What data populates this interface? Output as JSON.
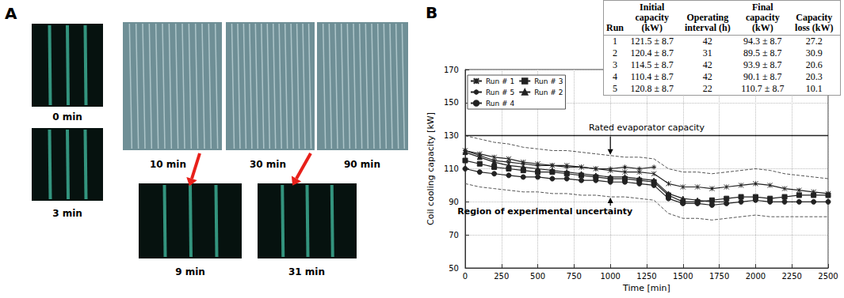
{
  "panel_a": {
    "label": "A",
    "images": [
      {
        "caption": "0 min"
      },
      {
        "caption": "3 min"
      },
      {
        "caption": "10 min"
      },
      {
        "caption": "30 min"
      },
      {
        "caption": "90 min"
      },
      {
        "caption": "9 min"
      },
      {
        "caption": "31 min"
      }
    ]
  },
  "chart_data": {
    "panel_label": "B",
    "type": "line",
    "xlabel": "Time [min]",
    "ylabel": "Coil cooling capacity [kW]",
    "x": [
      0,
      100,
      200,
      300,
      400,
      500,
      600,
      700,
      800,
      900,
      1000,
      1100,
      1200,
      1300,
      1400,
      1500,
      1600,
      1700,
      1800,
      1900,
      2000,
      2100,
      2200,
      2300,
      2400,
      2500
    ],
    "xlim": [
      0,
      2500
    ],
    "xticks": [
      0,
      250,
      500,
      750,
      1000,
      1250,
      1500,
      1750,
      2000,
      2250,
      2500
    ],
    "ylim": [
      50,
      170
    ],
    "yticks": [
      50,
      70,
      90,
      110,
      130,
      150,
      170
    ],
    "grid": true,
    "legend": "upper left",
    "series": [
      {
        "name": "Run # 1",
        "color": "#222222",
        "marker": "x",
        "line_style": "solid",
        "values": [
          121,
          119,
          117,
          116,
          114,
          113,
          112,
          112,
          111,
          110,
          109,
          108,
          108,
          107,
          101,
          99,
          99,
          98,
          99,
          100,
          101,
          100,
          98,
          97,
          96,
          95
        ]
      },
      {
        "name": "Run # 3",
        "color": "#222222",
        "marker": "square",
        "line_style": "solid",
        "values": [
          115,
          113,
          111,
          110,
          109,
          108,
          108,
          107,
          106,
          105,
          104,
          104,
          103,
          102,
          94,
          90,
          90,
          91,
          92,
          93,
          93,
          92,
          93,
          94,
          94,
          94
        ]
      },
      {
        "name": "Run # 5",
        "color": "#222222",
        "marker": "asterisk",
        "line_style": "solid",
        "values": [
          121,
          118,
          115,
          114,
          113,
          112,
          112,
          111,
          111,
          110,
          110,
          111,
          110,
          111,
          null,
          null,
          null,
          null,
          null,
          null,
          null,
          null,
          null,
          null,
          null,
          null
        ]
      },
      {
        "name": "Run # 2",
        "color": "#222222",
        "marker": "triangle",
        "line_style": "solid",
        "values": [
          120,
          117,
          114,
          112,
          111,
          110,
          109,
          108,
          107,
          106,
          105,
          105,
          104,
          103,
          95,
          92,
          91,
          90,
          90,
          null,
          null,
          null,
          null,
          null,
          null,
          null
        ]
      },
      {
        "name": "Run # 4",
        "color": "#222222",
        "marker": "circle",
        "line_style": "solid",
        "values": [
          110,
          108,
          107,
          106,
          105,
          105,
          104,
          104,
          103,
          103,
          102,
          102,
          101,
          100,
          92,
          89,
          89,
          88,
          89,
          90,
          91,
          90,
          90,
          90,
          90,
          90
        ]
      },
      {
        "color": "#555555",
        "line_style": "dashed",
        "values": [
          130,
          128,
          126,
          125,
          123,
          122,
          121,
          121,
          120,
          119,
          118,
          117,
          117,
          116,
          110,
          108,
          108,
          107,
          108,
          109,
          110,
          109,
          107,
          106,
          105,
          104
        ]
      },
      {
        "color": "#555555",
        "line_style": "dashed",
        "values": [
          101,
          99,
          98,
          97,
          96,
          96,
          95,
          95,
          94,
          94,
          93,
          93,
          92,
          91,
          83,
          80,
          80,
          79,
          80,
          81,
          82,
          81,
          81,
          81,
          81,
          81
        ]
      }
    ],
    "annotations": [
      {
        "text": "Rated evaporator capacity",
        "y": 130
      },
      {
        "text": "Region of experimental uncertainty",
        "x": 550,
        "y": 84
      }
    ]
  },
  "table": {
    "columns": [
      "Run",
      "Initial capacity (kW)",
      "Operating interval (h)",
      "Final capacity (kW)",
      "Capacity loss (kW)"
    ],
    "rows": [
      [
        "1",
        "121.5 ± 8.7",
        "42",
        "94.3 ± 8.7",
        "27.2"
      ],
      [
        "2",
        "120.4 ± 8.7",
        "31",
        "89.5 ± 8.7",
        "30.9"
      ],
      [
        "3",
        "114.5 ± 8.7",
        "42",
        "93.9 ± 8.7",
        "20.6"
      ],
      [
        "4",
        "110.4 ± 8.7",
        "42",
        "90.1 ± 8.7",
        "20.3"
      ],
      [
        "5",
        "120.8 ± 8.7",
        "22",
        "110.7 ± 8.7",
        "10.1"
      ]
    ]
  }
}
